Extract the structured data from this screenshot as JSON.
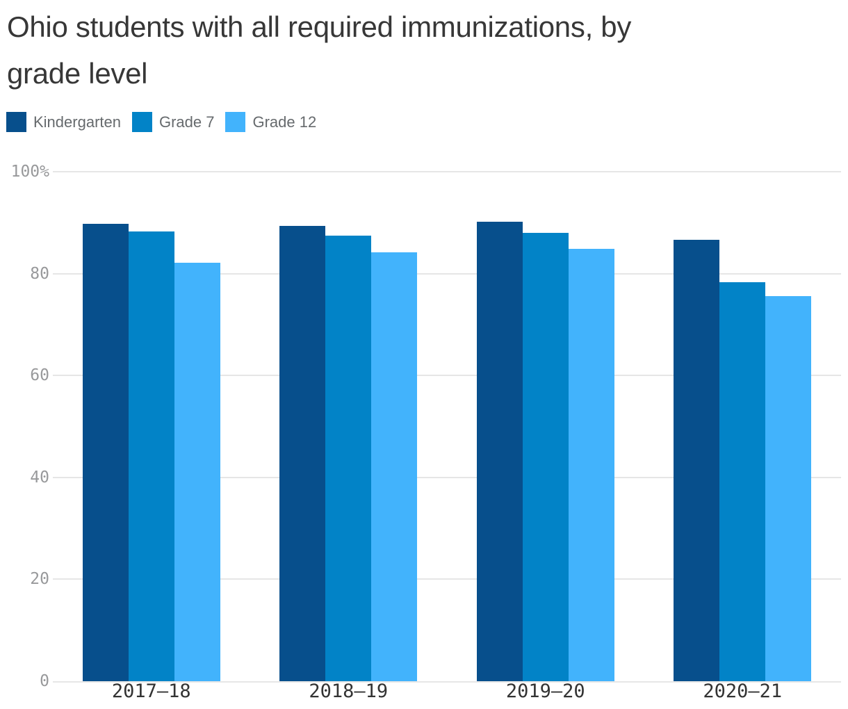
{
  "title_lines": [
    "Ohio students with all required immunizations, by",
    "grade level"
  ],
  "chart_data": {
    "type": "bar",
    "title": "Ohio students with all required immunizations, by grade level",
    "categories": [
      "2017–18",
      "2018–19",
      "2019–20",
      "2020–21"
    ],
    "series": [
      {
        "name": "Kindergarten",
        "color": "#074F8C",
        "values": [
          89.8,
          89.4,
          90.2,
          86.7
        ]
      },
      {
        "name": "Grade 7",
        "color": "#0283C7",
        "values": [
          88.3,
          87.5,
          88.0,
          78.3
        ]
      },
      {
        "name": "Grade 12",
        "color": "#42B3FC",
        "values": [
          82.1,
          84.2,
          84.9,
          75.6
        ]
      }
    ],
    "xlabel": "",
    "ylabel": "",
    "ylim": [
      0,
      100
    ],
    "yticks": [
      0,
      20,
      40,
      60,
      80,
      100
    ],
    "ytick_labels": [
      "0",
      "20",
      "40",
      "60",
      "80",
      "100%"
    ],
    "grid": true,
    "legend_position": "top-left",
    "grid_color": "#e6e6e6",
    "tick_label_color": "#98999b",
    "x_label_color": "#333333",
    "title_color": "#373737",
    "background_color": "#ffffff"
  }
}
